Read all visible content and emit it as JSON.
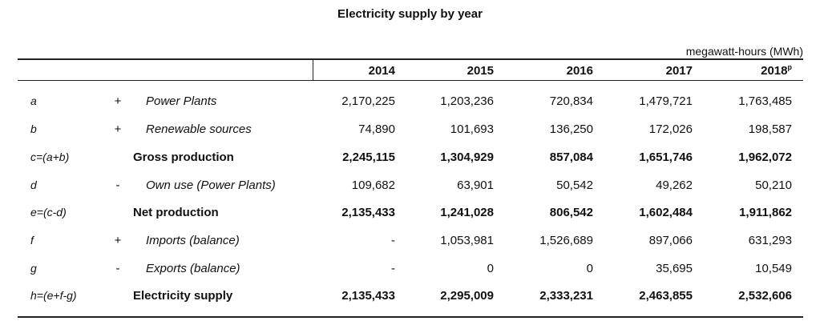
{
  "title": "Electricity supply by year",
  "unit": "megawatt-hours (MWh)",
  "years": [
    "2014",
    "2015",
    "2016",
    "2017",
    "2018"
  ],
  "last_year_note": "p",
  "rows": [
    {
      "code": "a",
      "op": "+",
      "label": "Power Plants",
      "bold": false,
      "values": [
        "2,170,225",
        "1,203,236",
        "720,834",
        "1,479,721",
        "1,763,485"
      ]
    },
    {
      "code": "b",
      "op": "+",
      "label": "Renewable sources",
      "bold": false,
      "values": [
        "74,890",
        "101,693",
        "136,250",
        "172,026",
        "198,587"
      ]
    },
    {
      "code": "c=(a+b)",
      "op": "",
      "label": "Gross production",
      "bold": true,
      "values": [
        "2,245,115",
        "1,304,929",
        "857,084",
        "1,651,746",
        "1,962,072"
      ]
    },
    {
      "code": "d",
      "op": "-",
      "label": "Own use (Power Plants)",
      "bold": false,
      "values": [
        "109,682",
        "63,901",
        "50,542",
        "49,262",
        "50,210"
      ]
    },
    {
      "code": "e=(c-d)",
      "op": "",
      "label": "Net production",
      "bold": true,
      "values": [
        "2,135,433",
        "1,241,028",
        "806,542",
        "1,602,484",
        "1,911,862"
      ]
    },
    {
      "code": "f",
      "op": "+",
      "label": "Imports (balance)",
      "bold": false,
      "values": [
        "-",
        "1,053,981",
        "1,526,689",
        "897,066",
        "631,293"
      ]
    },
    {
      "code": "g",
      "op": "-",
      "label": "Exports (balance)",
      "bold": false,
      "values": [
        "-",
        "0",
        "0",
        "35,695",
        "10,549"
      ]
    },
    {
      "code": "h=(e+f-g)",
      "op": "",
      "label": "Electricity supply",
      "bold": true,
      "values": [
        "2,135,433",
        "2,295,009",
        "2,333,231",
        "2,463,855",
        "2,532,606"
      ]
    }
  ]
}
